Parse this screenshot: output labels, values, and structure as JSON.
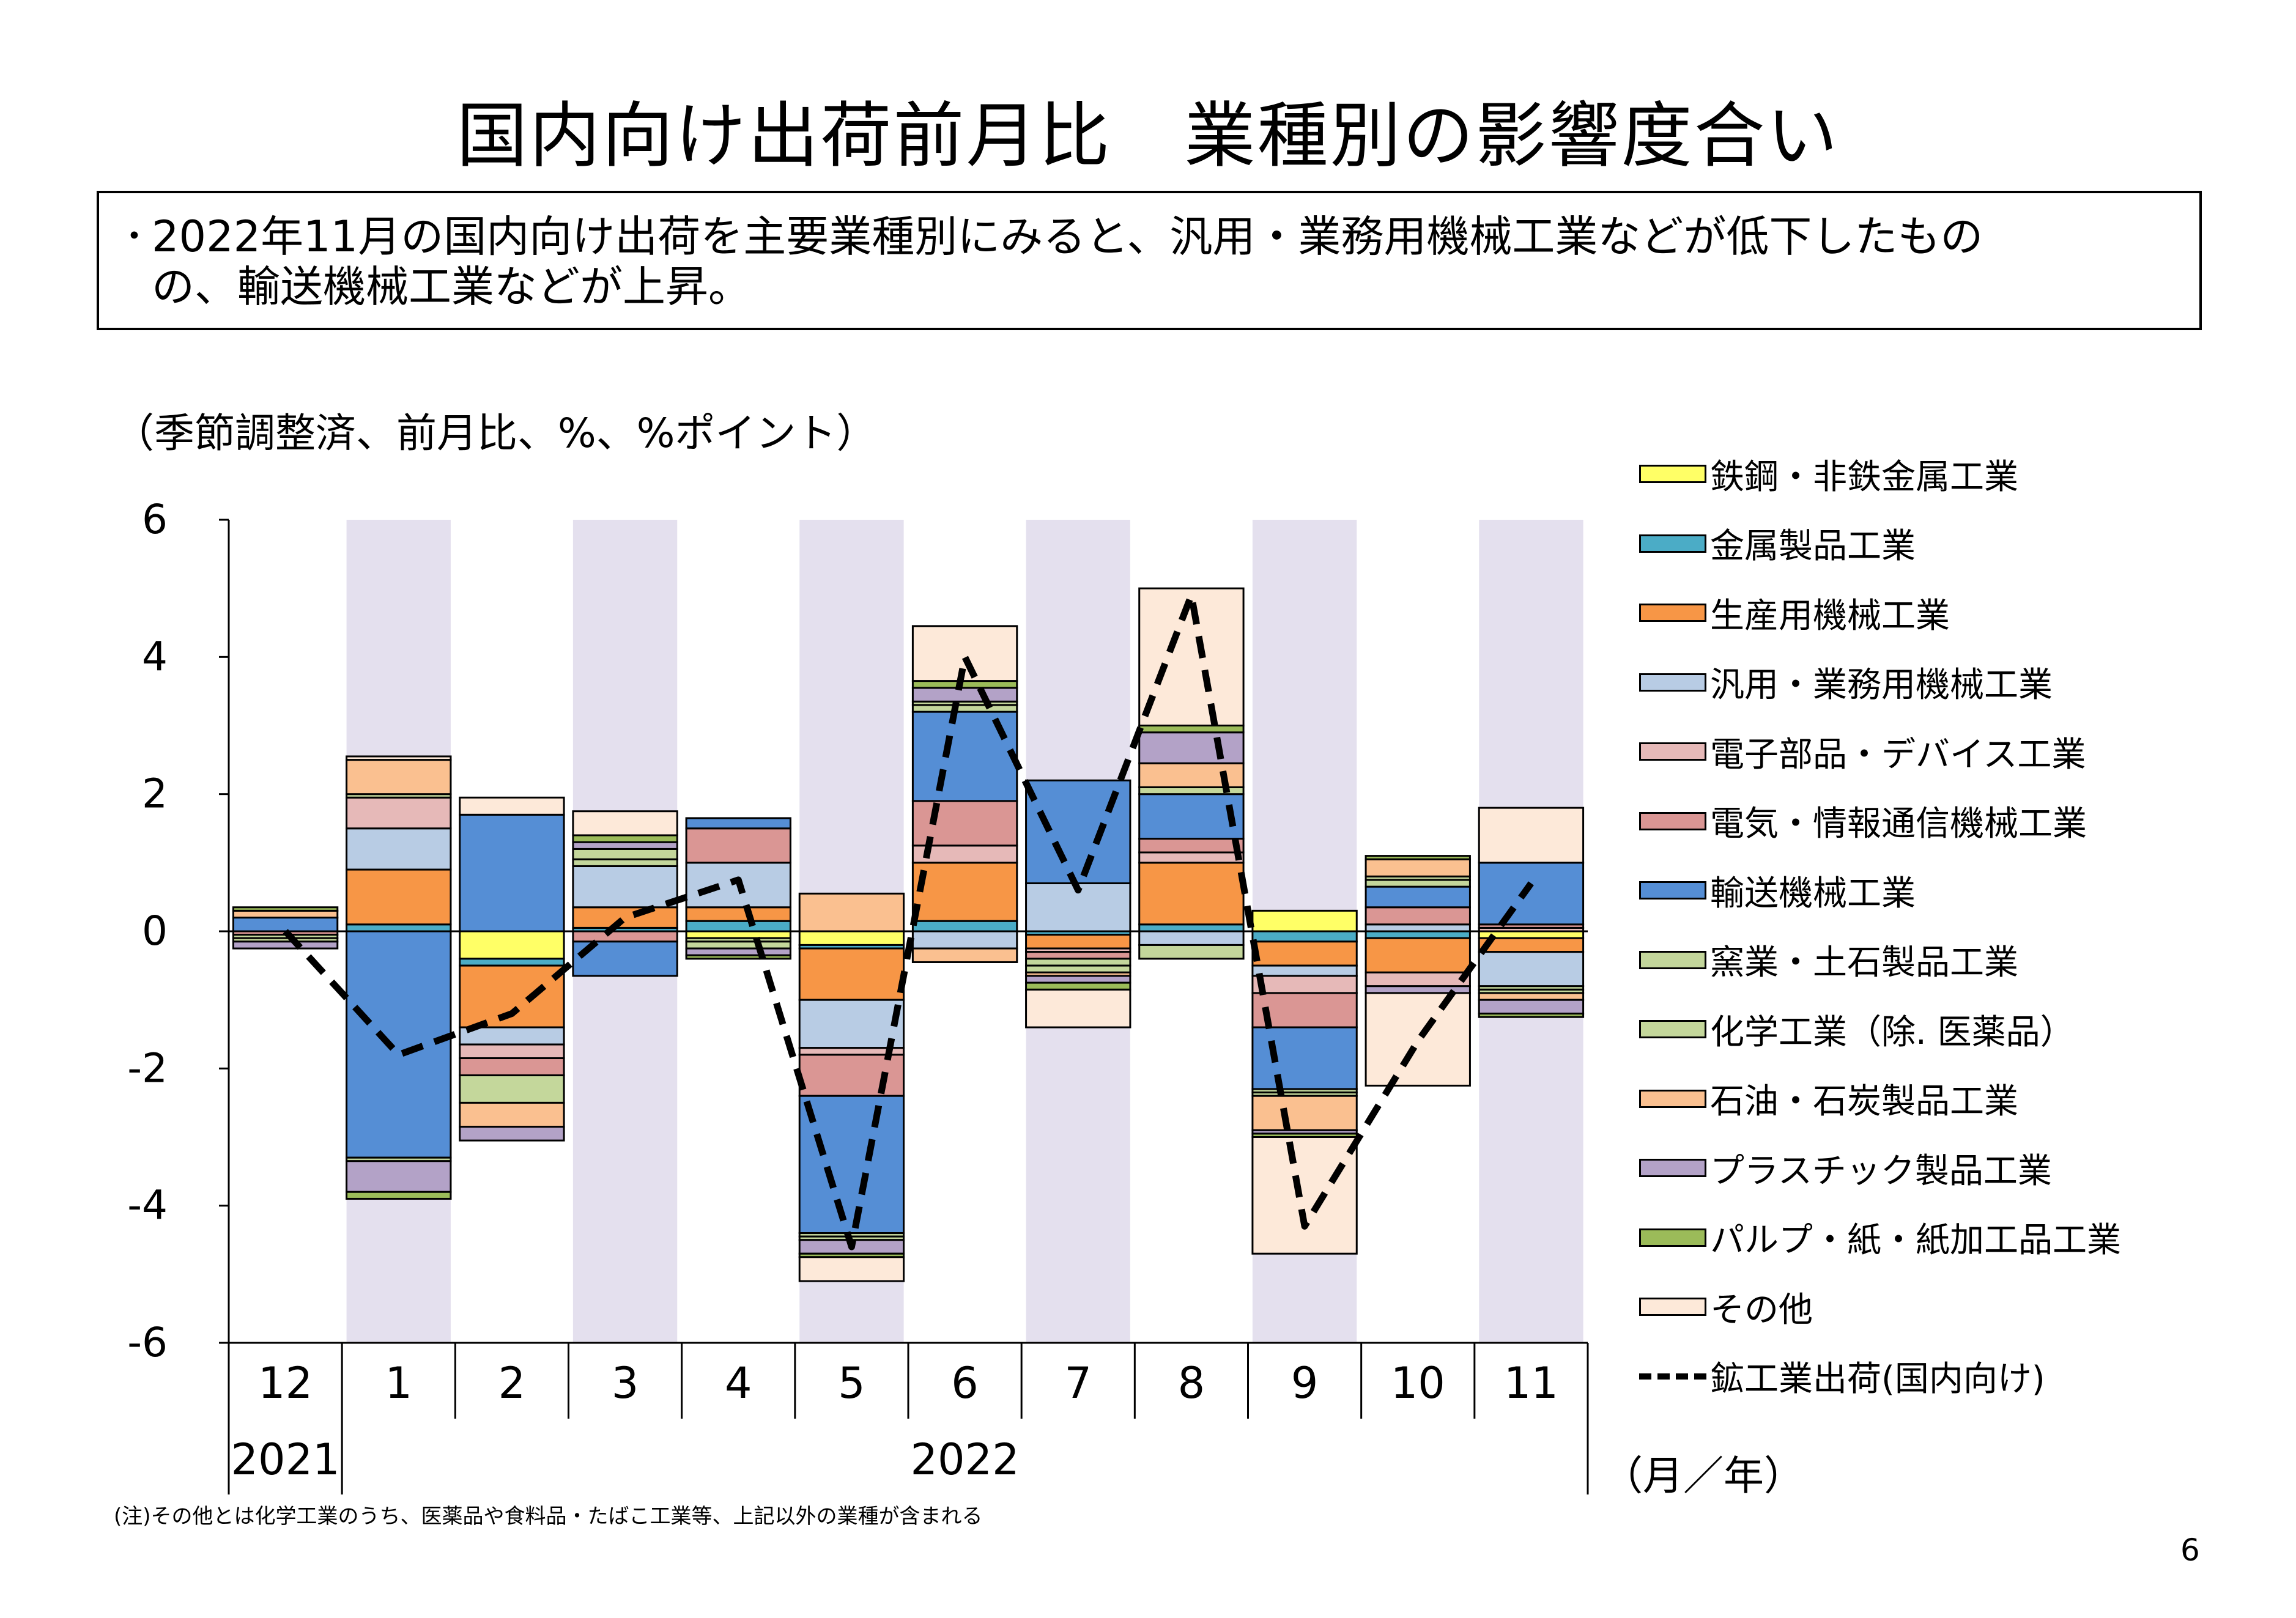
{
  "page": {
    "title": "国内向け出荷前月比　業種別の影響度合い",
    "summary_line1": "2022年11月の国内向け出荷を主要業種別にみると、汎用・業務用機械工業などが低下したもの",
    "summary_line2": "の、輸送機械工業などが上昇。",
    "bullet": "･",
    "unit_label": "（季節調整済、前月比、%、%ポイント）",
    "axis_unit": "（月／年）",
    "footnote": "(注)その他とは化学工業のうち、医薬品や食料品・たばこ工業等、上記以外の業種が含まれる",
    "page_number": "6"
  },
  "chart_data": {
    "type": "bar",
    "stacked": true,
    "categories": [
      "12",
      "1",
      "2",
      "3",
      "4",
      "5",
      "6",
      "7",
      "8",
      "9",
      "10",
      "11"
    ],
    "year_labels": [
      {
        "label": "2021",
        "span": [
          0,
          0
        ]
      },
      {
        "label": "2022",
        "span": [
          1,
          11
        ]
      }
    ],
    "ylim": [
      -6,
      6
    ],
    "yticks": [
      6,
      4,
      2,
      0,
      -2,
      -4,
      -6
    ],
    "ytick_labels": [
      "6",
      "4",
      "2",
      "0",
      "-2",
      "-4",
      "-6"
    ],
    "shaded_categories": [
      1,
      3,
      5,
      7,
      9,
      11
    ],
    "shade_color": "#e4e0ee",
    "grid": false,
    "legend_position": "right",
    "series": [
      {
        "name": "鉄鋼・非鉄金属工業",
        "color": "#ffff66",
        "values": [
          0,
          0,
          -0.4,
          0,
          -0.1,
          -0.2,
          0,
          0,
          0,
          0.3,
          0,
          -0.1
        ]
      },
      {
        "name": "金属製品工業",
        "color": "#4bacc6",
        "values": [
          0,
          0.1,
          -0.1,
          0.05,
          0.15,
          -0.05,
          0.15,
          -0.05,
          0.1,
          -0.15,
          -0.1,
          0
        ]
      },
      {
        "name": "生産用機械工業",
        "color": "#f79646",
        "values": [
          0,
          0.8,
          -0.9,
          0.3,
          0.2,
          -0.75,
          0.85,
          -0.2,
          0.9,
          -0.35,
          -0.5,
          -0.2
        ]
      },
      {
        "name": "汎用・業務用機械工業",
        "color": "#b8cce4",
        "values": [
          0,
          0.6,
          -0.25,
          0.6,
          0.65,
          -0.7,
          -0.25,
          0.7,
          -0.2,
          -0.15,
          0.1,
          -0.5
        ]
      },
      {
        "name": "電子部品・デバイス工業",
        "color": "#e6b9b8",
        "values": [
          0,
          0.45,
          -0.2,
          0,
          0,
          -0.1,
          0.25,
          -0.05,
          0.15,
          -0.25,
          -0.2,
          0.05
        ]
      },
      {
        "name": "電気・情報通信機械工業",
        "color": "#da9694",
        "values": [
          -0.05,
          0,
          -0.25,
          -0.15,
          0.5,
          -0.6,
          0.65,
          -0.1,
          0.2,
          -0.5,
          0.25,
          0.05
        ]
      },
      {
        "name": "輸送機械工業",
        "color": "#558ed5",
        "values": [
          0.2,
          -3.3,
          1.7,
          -0.5,
          0.15,
          -2.0,
          1.3,
          1.5,
          0.65,
          -0.9,
          0.3,
          0.9
        ]
      },
      {
        "name": "窯業・土石製品工業",
        "color": "#c3d69b",
        "values": [
          -0.05,
          -0.05,
          0,
          0.1,
          -0.05,
          -0.05,
          0.1,
          -0.1,
          -0.2,
          -0.05,
          0.1,
          -0.05
        ]
      },
      {
        "name": "化学工業（除. 医薬品）",
        "color": "#c4d79b",
        "values": [
          -0.05,
          0.05,
          -0.4,
          0.15,
          -0.1,
          -0.05,
          0.05,
          -0.1,
          0.1,
          -0.05,
          0.05,
          -0.05
        ]
      },
      {
        "name": "石油・石炭製品工業",
        "color": "#fac090",
        "values": [
          0.1,
          0.5,
          -0.35,
          0,
          0,
          0.55,
          -0.2,
          -0.05,
          0.35,
          -0.5,
          0.25,
          -0.1
        ]
      },
      {
        "name": "プラスチック製品工業",
        "color": "#b3a2c7",
        "values": [
          -0.1,
          -0.45,
          -0.2,
          0.1,
          -0.1,
          -0.2,
          0.2,
          -0.1,
          0.45,
          -0.05,
          -0.1,
          -0.2
        ]
      },
      {
        "name": "パルプ・紙・紙加工品工業",
        "color": "#9bbb59",
        "values": [
          0.05,
          -0.1,
          0,
          0.1,
          -0.05,
          -0.05,
          0.1,
          -0.1,
          0.1,
          -0.05,
          0.05,
          -0.05
        ]
      },
      {
        "name": "その他",
        "color": "#fde9d9",
        "values": [
          0,
          0.05,
          0.25,
          0.35,
          0,
          -0.35,
          0.8,
          -0.55,
          2.0,
          -1.7,
          -1.35,
          0.8
        ]
      }
    ],
    "line_series": {
      "name": "鉱工業出荷(国内向け)",
      "color": "#000000",
      "style": "dashed",
      "values": [
        0,
        -1.8,
        -1.2,
        0.2,
        0.75,
        -4.6,
        4.0,
        0.6,
        4.9,
        -4.3,
        -1.6,
        0.7
      ]
    }
  }
}
